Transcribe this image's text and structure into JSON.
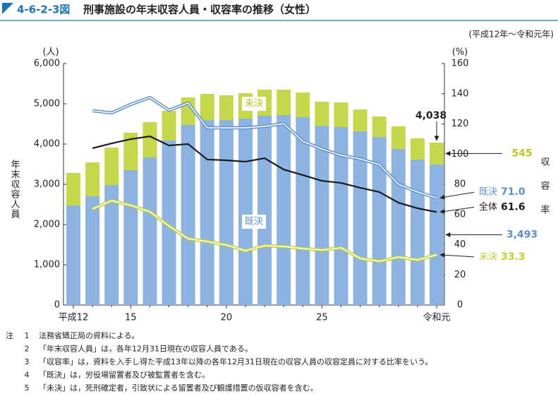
{
  "figure_number": "4-6-2-3図",
  "chart_data": {
    "type": "bar",
    "stacked": true,
    "title": "刑事施設の年末収容人員・収容率の推移（女性）",
    "subtitle": "(平成12年～令和元年)",
    "y_unit": "(人)",
    "y_label": "年末収容人員",
    "y2_unit": "(%)",
    "y2_label": "収容率",
    "categories": [
      "平成12",
      null,
      null,
      "15",
      null,
      null,
      null,
      null,
      "20",
      null,
      null,
      null,
      null,
      "25",
      null,
      null,
      null,
      null,
      null,
      "令和元"
    ],
    "ylim": [
      0,
      6000
    ],
    "yticks": [
      0,
      {
        "value": 1000,
        "label": "1,000"
      },
      {
        "value": 2000,
        "label": "2,000"
      },
      {
        "value": 3000,
        "label": "3,000"
      },
      {
        "value": 4000,
        "label": "4,000"
      },
      {
        "value": 5000,
        "label": "5,000"
      },
      {
        "value": 6000,
        "label": "6,000"
      }
    ],
    "y2lim": [
      0,
      160
    ],
    "y2ticks": [
      0,
      20,
      40,
      60,
      80,
      100,
      120,
      140,
      160
    ],
    "series": [
      {
        "name": "既決",
        "type": "bar",
        "color": "#8db3e2",
        "values": [
          2474,
          2702,
          2982,
          3351,
          3667,
          4088,
          4474,
          4596,
          4596,
          4632,
          4702,
          4719,
          4667,
          4456,
          4421,
          4316,
          4175,
          3877,
          3614,
          3493
        ],
        "value_labels": [
          null,
          null,
          null,
          null,
          null,
          null,
          null,
          null,
          null,
          null,
          null,
          null,
          null,
          null,
          null,
          null,
          null,
          null,
          null,
          "3,493"
        ]
      },
      {
        "name": "未決",
        "type": "bar",
        "color": "#c5d84a",
        "values": [
          807,
          842,
          930,
          930,
          877,
          737,
          684,
          650,
          615,
          631,
          649,
          632,
          614,
          597,
          614,
          544,
          509,
          562,
          526,
          545
        ],
        "value_labels": [
          null,
          null,
          null,
          null,
          null,
          null,
          null,
          null,
          null,
          null,
          null,
          null,
          null,
          null,
          null,
          null,
          null,
          null,
          null,
          "545"
        ]
      },
      {
        "name": "既決",
        "type": "line",
        "axis": "y2",
        "color": "#5b8fd0",
        "values": [
          null,
          128.7,
          127.3,
          132.9,
          137.5,
          129.1,
          133.8,
          117.4,
          117.4,
          117.4,
          118.4,
          120.2,
          108.5,
          103.4,
          99.2,
          96.8,
          93.1,
          80.0,
          74.9,
          71.0
        ],
        "value_labels": [
          null,
          null,
          null,
          null,
          null,
          null,
          null,
          null,
          null,
          null,
          null,
          null,
          null,
          null,
          null,
          null,
          null,
          null,
          null,
          "71.0"
        ]
      },
      {
        "name": "全体",
        "type": "line",
        "axis": "y2",
        "color": "#1a1a1a",
        "values": [
          null,
          103.9,
          107.1,
          109.9,
          111.8,
          105.7,
          106.7,
          96.4,
          95.9,
          95.0,
          97.3,
          89.8,
          86.1,
          82.3,
          80.9,
          77.7,
          74.9,
          67.8,
          64.1,
          61.6
        ],
        "value_labels": [
          null,
          null,
          null,
          null,
          null,
          null,
          null,
          null,
          null,
          null,
          null,
          null,
          null,
          null,
          null,
          null,
          null,
          null,
          null,
          "61.6"
        ]
      },
      {
        "name": "未決",
        "type": "line",
        "axis": "y2",
        "color": "#c2d12a",
        "values": [
          null,
          63.6,
          69.2,
          66.0,
          61.8,
          52.4,
          44.0,
          42.1,
          39.8,
          36.0,
          39.3,
          38.8,
          37.4,
          36.5,
          37.9,
          30.9,
          29.0,
          31.8,
          29.9,
          33.3
        ],
        "value_labels": [
          null,
          null,
          null,
          null,
          null,
          null,
          null,
          null,
          null,
          null,
          null,
          null,
          null,
          null,
          null,
          null,
          null,
          null,
          null,
          "33.3"
        ]
      }
    ],
    "annotations": [
      {
        "value": 4038,
        "label": "4,038"
      }
    ]
  },
  "notes": {
    "label": "注",
    "items": [
      {
        "number": "1",
        "text": "法務省矯正局の資料による。"
      },
      {
        "number": "2",
        "text": "「年末収容人員」は，各年12月31日現在の収容人員である。"
      },
      {
        "number": "3",
        "text": "「収容率」は，資料を入手し得た平成13年以降の各年12月31日現在の収容人員の収容定員に対する比率をいう。"
      },
      {
        "number": "4",
        "text": "「既決」は，労役場留置者及び被監置者を含む。"
      },
      {
        "number": "5",
        "text": "「未決」は，死刑確定者，引致状による留置者及び観護措置の仮収容者を含む。"
      }
    ]
  }
}
